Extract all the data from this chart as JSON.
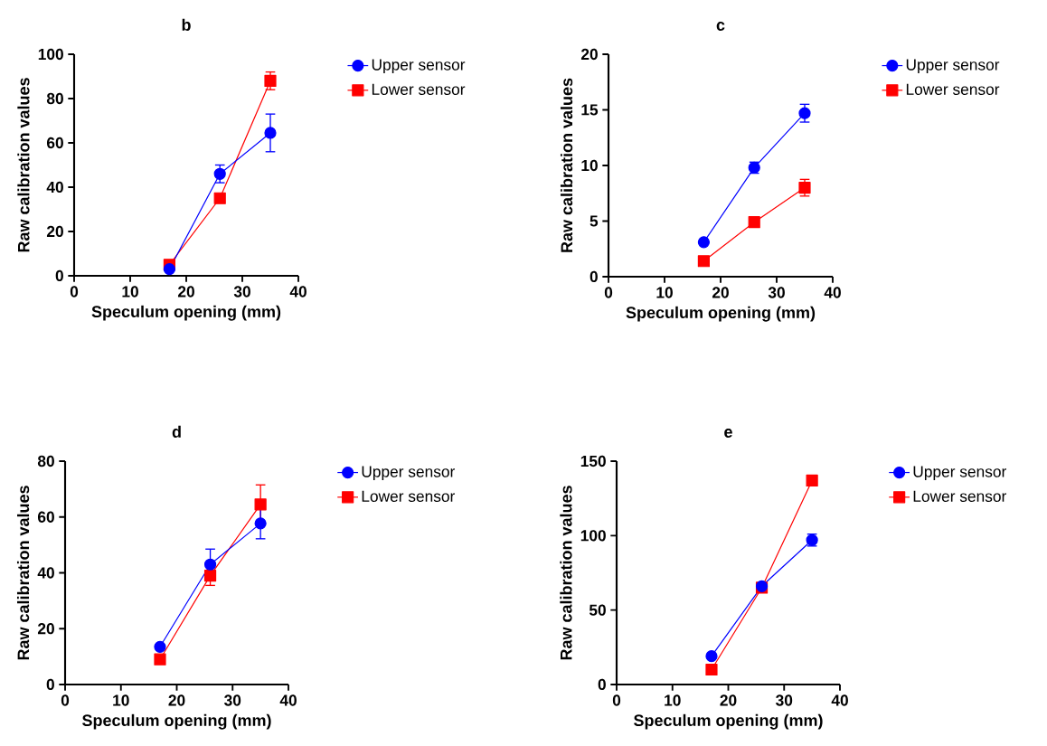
{
  "chart_data": [
    {
      "type": "line",
      "title": "b",
      "xlabel": "Speculum opening (mm)",
      "ylabel": "Raw calibration values",
      "xlim": [
        0,
        40
      ],
      "xticks": [
        0,
        10,
        20,
        30,
        40
      ],
      "ylim": [
        0,
        100
      ],
      "yticks": [
        0,
        20,
        40,
        60,
        80,
        100
      ],
      "legend": "right",
      "x": [
        17,
        26,
        35
      ],
      "series": [
        {
          "name": "Upper sensor",
          "color": "#0000ff",
          "marker": "circle",
          "values": [
            3,
            46,
            64.5
          ],
          "errors": [
            null,
            4,
            8.5
          ]
        },
        {
          "name": "Lower sensor",
          "color": "#ff0000",
          "marker": "square",
          "values": [
            5,
            35,
            88
          ],
          "errors": [
            null,
            null,
            4
          ]
        }
      ]
    },
    {
      "type": "line",
      "title": "c",
      "xlabel": "Speculum opening (mm)",
      "ylabel": "Raw calibration values",
      "xlim": [
        0,
        40
      ],
      "xticks": [
        0,
        10,
        20,
        30,
        40
      ],
      "ylim": [
        0,
        20
      ],
      "yticks": [
        0,
        5,
        10,
        15,
        20
      ],
      "legend": "right",
      "x": [
        17,
        26,
        35
      ],
      "series": [
        {
          "name": "Upper sensor",
          "color": "#0000ff",
          "marker": "circle",
          "values": [
            3.1,
            9.8,
            14.7
          ],
          "errors": [
            null,
            0.5,
            0.8
          ]
        },
        {
          "name": "Lower sensor",
          "color": "#ff0000",
          "marker": "square",
          "values": [
            1.4,
            4.9,
            8.0
          ],
          "errors": [
            null,
            null,
            0.75
          ]
        }
      ]
    },
    {
      "type": "line",
      "title": "d",
      "xlabel": "Speculum opening (mm)",
      "ylabel": "Raw calibration values",
      "xlim": [
        0,
        40
      ],
      "xticks": [
        0,
        10,
        20,
        30,
        40
      ],
      "ylim": [
        0,
        80
      ],
      "yticks": [
        0,
        20,
        40,
        60,
        80
      ],
      "legend": "right",
      "x": [
        17,
        26,
        35
      ],
      "series": [
        {
          "name": "Upper sensor",
          "color": "#0000ff",
          "marker": "circle",
          "values": [
            13.5,
            43,
            57.7
          ],
          "errors": [
            null,
            5.5,
            5.5
          ]
        },
        {
          "name": "Lower sensor",
          "color": "#ff0000",
          "marker": "square",
          "values": [
            9,
            39,
            64.5
          ],
          "errors": [
            null,
            3.5,
            7
          ]
        }
      ]
    },
    {
      "type": "line",
      "title": "e",
      "xlabel": "Speculum opening (mm)",
      "ylabel": "Raw calibration values",
      "xlim": [
        0,
        40
      ],
      "xticks": [
        0,
        10,
        20,
        30,
        40
      ],
      "ylim": [
        0,
        150
      ],
      "yticks": [
        0,
        50,
        100,
        150
      ],
      "legend": "right",
      "x": [
        17,
        26,
        35
      ],
      "series": [
        {
          "name": "Upper sensor",
          "color": "#0000ff",
          "marker": "circle",
          "values": [
            19,
            66,
            97
          ],
          "errors": [
            null,
            null,
            4
          ]
        },
        {
          "name": "Lower sensor",
          "color": "#ff0000",
          "marker": "square",
          "values": [
            10,
            65,
            137
          ],
          "errors": [
            null,
            null,
            null
          ]
        }
      ]
    }
  ]
}
